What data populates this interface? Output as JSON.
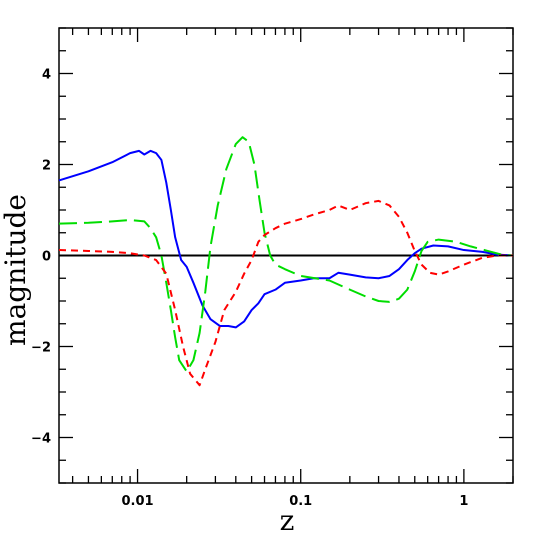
{
  "chart_data": {
    "type": "line",
    "xlabel": "z",
    "ylabel": "magnitude",
    "xscale": "log",
    "xlim": [
      0.0033,
      2.0
    ],
    "ylim": [
      -5,
      5
    ],
    "x_ticks": [
      {
        "value": 0.01,
        "label": "0.01"
      },
      {
        "value": 0.1,
        "label": "0.1"
      },
      {
        "value": 1,
        "label": "1"
      }
    ],
    "y_ticks": [
      {
        "value": -4,
        "label": "−4"
      },
      {
        "value": -2,
        "label": "−2"
      },
      {
        "value": 0,
        "label": "0"
      },
      {
        "value": 2,
        "label": "2"
      },
      {
        "value": 4,
        "label": "4"
      }
    ],
    "grid": false,
    "reference_line": {
      "y": 0,
      "color": "#000000"
    },
    "series": [
      {
        "color": "#0000ff",
        "style": "solid",
        "points": [
          [
            0.0033,
            1.65
          ],
          [
            0.005,
            1.85
          ],
          [
            0.007,
            2.05
          ],
          [
            0.009,
            2.25
          ],
          [
            0.0102,
            2.3
          ],
          [
            0.011,
            2.22
          ],
          [
            0.012,
            2.3
          ],
          [
            0.013,
            2.25
          ],
          [
            0.014,
            2.1
          ],
          [
            0.015,
            1.6
          ],
          [
            0.016,
            1.0
          ],
          [
            0.017,
            0.4
          ],
          [
            0.0185,
            -0.1
          ],
          [
            0.02,
            -0.25
          ],
          [
            0.022,
            -0.6
          ],
          [
            0.025,
            -1.1
          ],
          [
            0.028,
            -1.4
          ],
          [
            0.032,
            -1.55
          ],
          [
            0.036,
            -1.55
          ],
          [
            0.04,
            -1.58
          ],
          [
            0.045,
            -1.45
          ],
          [
            0.05,
            -1.2
          ],
          [
            0.055,
            -1.05
          ],
          [
            0.06,
            -0.85
          ],
          [
            0.07,
            -0.75
          ],
          [
            0.08,
            -0.6
          ],
          [
            0.1,
            -0.55
          ],
          [
            0.12,
            -0.5
          ],
          [
            0.15,
            -0.5
          ],
          [
            0.17,
            -0.38
          ],
          [
            0.2,
            -0.42
          ],
          [
            0.25,
            -0.48
          ],
          [
            0.3,
            -0.5
          ],
          [
            0.35,
            -0.45
          ],
          [
            0.4,
            -0.3
          ],
          [
            0.45,
            -0.1
          ],
          [
            0.5,
            0.05
          ],
          [
            0.55,
            0.15
          ],
          [
            0.65,
            0.22
          ],
          [
            0.8,
            0.2
          ],
          [
            1.0,
            0.12
          ],
          [
            1.3,
            0.08
          ],
          [
            1.6,
            0.02
          ],
          [
            2.0,
            0.0
          ]
        ]
      },
      {
        "color": "#00dd00",
        "style": "long-dash",
        "points": [
          [
            0.0033,
            0.7
          ],
          [
            0.005,
            0.72
          ],
          [
            0.007,
            0.75
          ],
          [
            0.009,
            0.78
          ],
          [
            0.011,
            0.75
          ],
          [
            0.012,
            0.6
          ],
          [
            0.013,
            0.4
          ],
          [
            0.014,
            0.0
          ],
          [
            0.015,
            -0.6
          ],
          [
            0.016,
            -1.2
          ],
          [
            0.017,
            -1.8
          ],
          [
            0.018,
            -2.3
          ],
          [
            0.02,
            -2.55
          ],
          [
            0.022,
            -2.3
          ],
          [
            0.024,
            -1.7
          ],
          [
            0.026,
            -0.8
          ],
          [
            0.028,
            0.2
          ],
          [
            0.031,
            1.1
          ],
          [
            0.035,
            1.9
          ],
          [
            0.04,
            2.45
          ],
          [
            0.044,
            2.6
          ],
          [
            0.048,
            2.5
          ],
          [
            0.052,
            2.0
          ],
          [
            0.056,
            1.2
          ],
          [
            0.06,
            0.5
          ],
          [
            0.065,
            0.0
          ],
          [
            0.07,
            -0.2
          ],
          [
            0.08,
            -0.3
          ],
          [
            0.1,
            -0.45
          ],
          [
            0.15,
            -0.55
          ],
          [
            0.2,
            -0.75
          ],
          [
            0.25,
            -0.9
          ],
          [
            0.3,
            -1.0
          ],
          [
            0.35,
            -1.02
          ],
          [
            0.4,
            -0.95
          ],
          [
            0.45,
            -0.75
          ],
          [
            0.5,
            -0.35
          ],
          [
            0.55,
            0.1
          ],
          [
            0.6,
            0.3
          ],
          [
            0.7,
            0.35
          ],
          [
            0.9,
            0.3
          ],
          [
            1.1,
            0.2
          ],
          [
            1.4,
            0.1
          ],
          [
            1.7,
            0.02
          ],
          [
            2.0,
            0.0
          ]
        ]
      },
      {
        "color": "#ff0000",
        "style": "short-dash",
        "points": [
          [
            0.0033,
            0.12
          ],
          [
            0.005,
            0.1
          ],
          [
            0.007,
            0.08
          ],
          [
            0.009,
            0.05
          ],
          [
            0.011,
            0.0
          ],
          [
            0.013,
            -0.1
          ],
          [
            0.015,
            -0.4
          ],
          [
            0.017,
            -1.2
          ],
          [
            0.019,
            -2.0
          ],
          [
            0.021,
            -2.6
          ],
          [
            0.024,
            -2.85
          ],
          [
            0.026,
            -2.5
          ],
          [
            0.03,
            -1.9
          ],
          [
            0.034,
            -1.2
          ],
          [
            0.04,
            -0.8
          ],
          [
            0.045,
            -0.4
          ],
          [
            0.05,
            -0.1
          ],
          [
            0.055,
            0.3
          ],
          [
            0.06,
            0.45
          ],
          [
            0.07,
            0.6
          ],
          [
            0.08,
            0.7
          ],
          [
            0.1,
            0.8
          ],
          [
            0.12,
            0.9
          ],
          [
            0.15,
            1.0
          ],
          [
            0.17,
            1.1
          ],
          [
            0.2,
            1.0
          ],
          [
            0.25,
            1.15
          ],
          [
            0.3,
            1.2
          ],
          [
            0.35,
            1.1
          ],
          [
            0.4,
            0.85
          ],
          [
            0.45,
            0.5
          ],
          [
            0.5,
            0.1
          ],
          [
            0.55,
            -0.2
          ],
          [
            0.62,
            -0.38
          ],
          [
            0.7,
            -0.42
          ],
          [
            0.8,
            -0.35
          ],
          [
            1.0,
            -0.2
          ],
          [
            1.3,
            -0.05
          ],
          [
            1.6,
            0.0
          ],
          [
            2.0,
            0.0
          ]
        ]
      }
    ]
  }
}
